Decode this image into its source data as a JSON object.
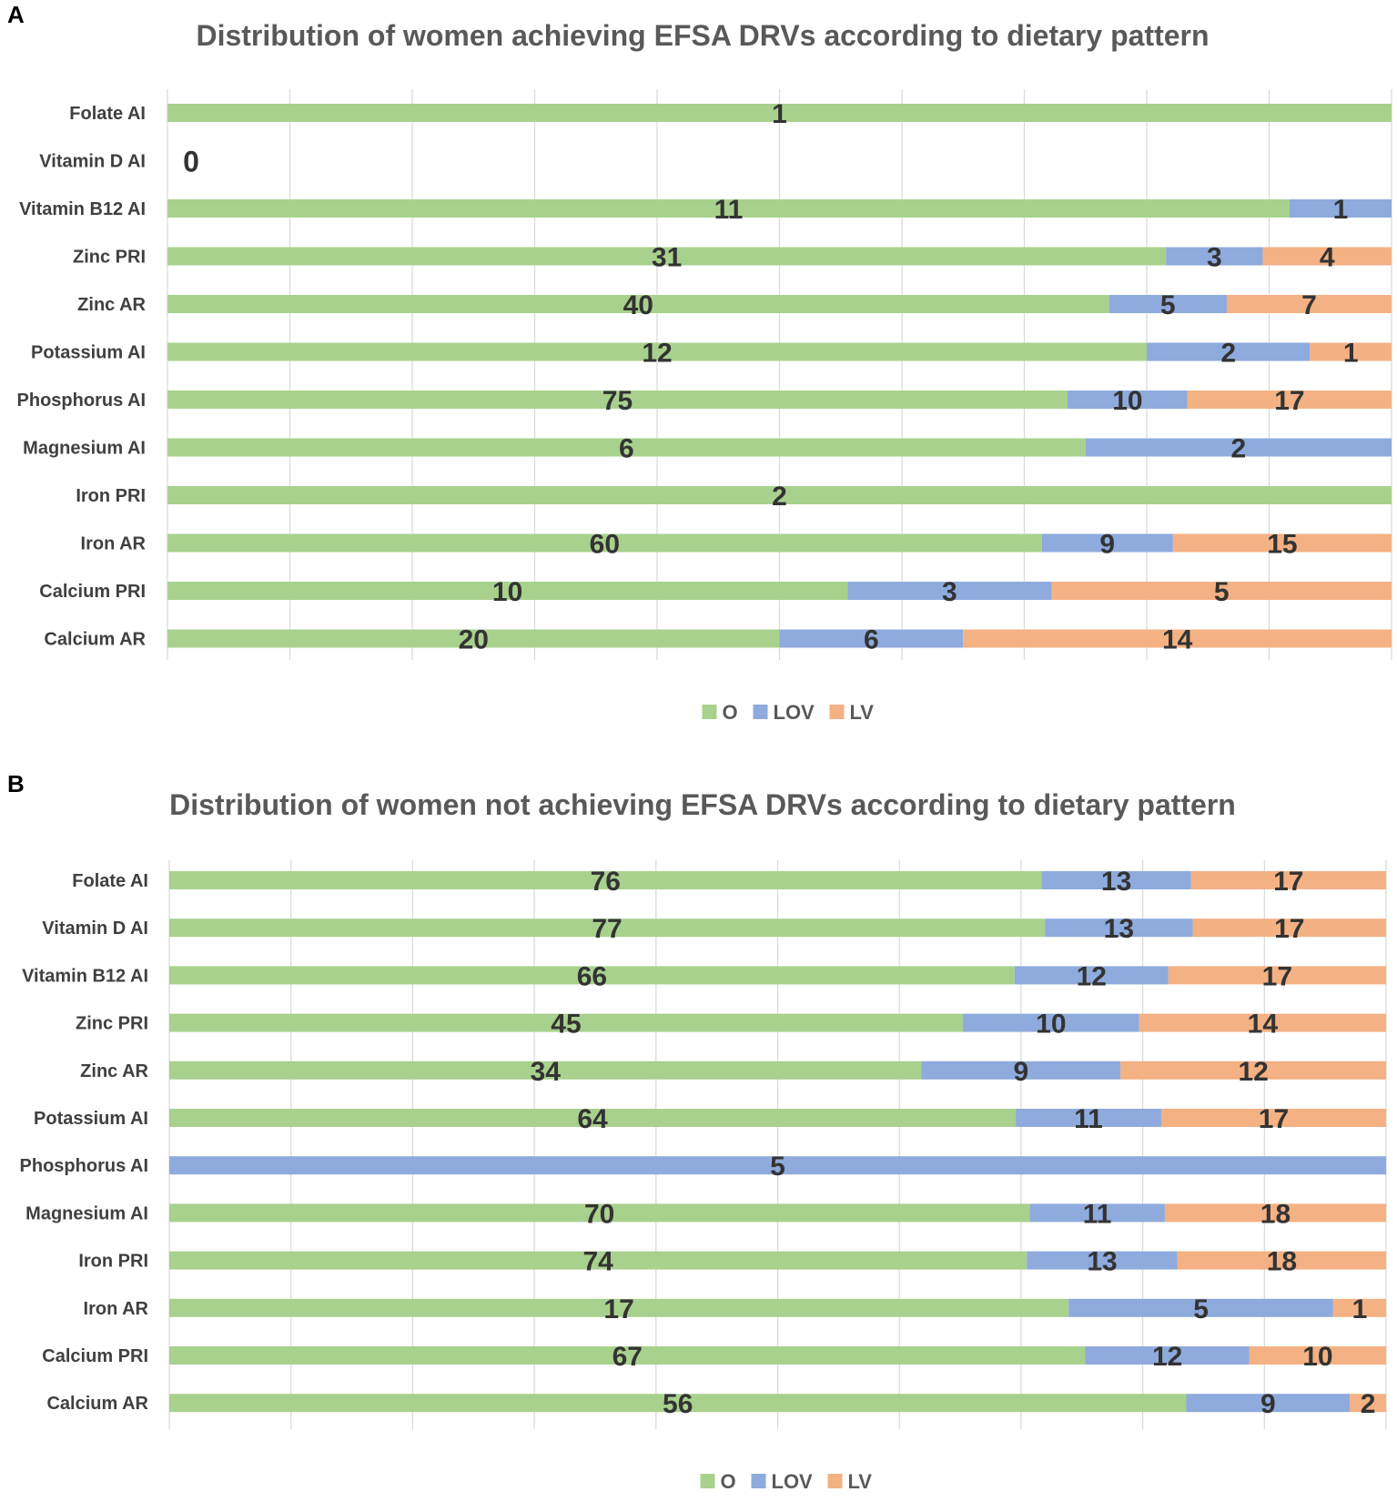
{
  "colors": {
    "O": "#a9d18e",
    "LOV": "#8faadc",
    "LV": "#f4b183",
    "grid": "#d9d9d9",
    "title": "#595959",
    "label": "#404040",
    "value": "#333333"
  },
  "chart_data": [
    {
      "panel": "A",
      "type": "bar",
      "stacked": "percent",
      "orientation": "horizontal",
      "title": "Distribution of women achieving EFSA DRVs according to dietary pattern",
      "xlim": [
        0,
        100
      ],
      "grid": true,
      "legend": "bottom-center",
      "categories": [
        "Folate AI",
        "Vitamin D AI",
        "Vitamin B12 AI",
        "Zinc PRI",
        "Zinc AR",
        "Potassium AI",
        "Phosphorus  AI",
        "Magnesium AI",
        "Iron PRI",
        "Iron AR",
        "Calcium PRI",
        "Calcium AR"
      ],
      "series": [
        {
          "name": "O",
          "values": [
            1,
            0,
            11,
            31,
            40,
            12,
            75,
            6,
            2,
            60,
            10,
            20
          ]
        },
        {
          "name": "LOV",
          "values": [
            0,
            0,
            1,
            3,
            5,
            2,
            10,
            2,
            0,
            9,
            3,
            6
          ]
        },
        {
          "name": "LV",
          "values": [
            0,
            0,
            0,
            4,
            7,
            1,
            17,
            0,
            0,
            15,
            5,
            14
          ]
        }
      ],
      "annotations": [
        {
          "category": "Vitamin D AI",
          "text": "0"
        }
      ]
    },
    {
      "panel": "B",
      "type": "bar",
      "stacked": "percent",
      "orientation": "horizontal",
      "title": "Distribution of women not achieving EFSA DRVs according to dietary pattern",
      "xlim": [
        0,
        100
      ],
      "grid": true,
      "legend": "bottom-center",
      "categories": [
        "Folate AI",
        "Vitamin D AI",
        "Vitamin B12 AI",
        "Zinc PRI",
        "Zinc AR",
        "Potassium AI",
        "Phosphorus  AI",
        "Magnesium AI",
        "Iron PRI",
        "Iron AR",
        "Calcium PRI",
        "Calcium AR"
      ],
      "series": [
        {
          "name": "O",
          "values": [
            76,
            77,
            66,
            45,
            34,
            64,
            0,
            70,
            74,
            17,
            67,
            56
          ]
        },
        {
          "name": "LOV",
          "values": [
            13,
            13,
            12,
            10,
            9,
            11,
            5,
            11,
            13,
            5,
            12,
            9
          ]
        },
        {
          "name": "LV",
          "values": [
            17,
            17,
            17,
            14,
            12,
            17,
            0,
            18,
            18,
            1,
            10,
            2
          ]
        }
      ],
      "annotations": []
    }
  ]
}
